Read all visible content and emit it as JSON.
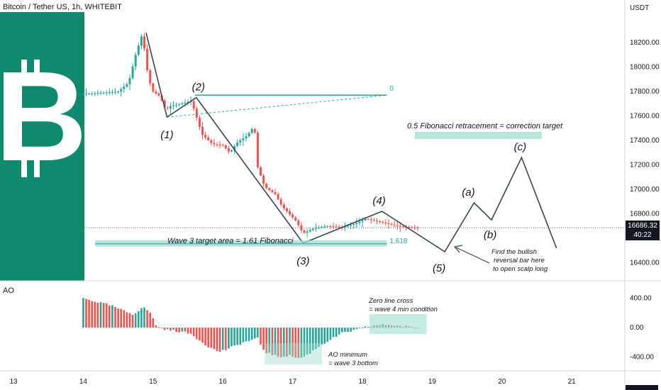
{
  "header": {
    "title": "Bitcoin / Tether US, 1h, WHITEBIT",
    "price_unit": "USDT",
    "oscillator_label": "AO"
  },
  "price_tag": {
    "price": "16686.32",
    "countdown": "40:22"
  },
  "colors": {
    "logo_bg": "#0f8a6f",
    "bull": "#26a69a",
    "bear": "#ef5350",
    "wave_line": "#37474f",
    "fib_zone": "#9fdccf",
    "fib_line": "#26a69a"
  },
  "chart_data": [
    {
      "type": "candlestick",
      "title": "Bitcoin / Tether US, 1h, WHITEBIT",
      "x_ticks": [
        "13",
        "14",
        "15",
        "16",
        "17",
        "18",
        "19",
        "20",
        "21"
      ],
      "y_ticks": [
        18200,
        18000,
        17800,
        17600,
        17400,
        17200,
        17000,
        16800,
        16600,
        16400
      ],
      "ylim": [
        16260,
        18400
      ],
      "x_range": [
        12.8,
        21.4
      ],
      "last_price": 16686.32,
      "close_path": [
        [
          14.0,
          17780
        ],
        [
          14.3,
          17790
        ],
        [
          14.5,
          17800
        ],
        [
          14.65,
          17870
        ],
        [
          14.75,
          18100
        ],
        [
          14.85,
          18280
        ],
        [
          14.9,
          18020
        ],
        [
          14.95,
          17880
        ],
        [
          15.0,
          17800
        ],
        [
          15.1,
          17760
        ],
        [
          15.18,
          17650
        ],
        [
          15.25,
          17680
        ],
        [
          15.4,
          17700
        ],
        [
          15.55,
          17720
        ],
        [
          15.7,
          17450
        ],
        [
          15.85,
          17370
        ],
        [
          16.0,
          17360
        ],
        [
          16.1,
          17300
        ],
        [
          16.2,
          17380
        ],
        [
          16.35,
          17440
        ],
        [
          16.45,
          17520
        ],
        [
          16.5,
          17180
        ],
        [
          16.6,
          17020
        ],
        [
          16.75,
          16960
        ],
        [
          16.85,
          16860
        ],
        [
          16.95,
          16800
        ],
        [
          17.05,
          16740
        ],
        [
          17.15,
          16640
        ],
        [
          17.3,
          16680
        ],
        [
          17.5,
          16700
        ],
        [
          17.7,
          16690
        ],
        [
          17.9,
          16720
        ],
        [
          18.05,
          16760
        ],
        [
          18.2,
          16740
        ],
        [
          18.35,
          16720
        ],
        [
          18.5,
          16700
        ],
        [
          18.65,
          16690
        ],
        [
          18.8,
          16686.32
        ]
      ],
      "elliott_wave": [
        {
          "label": "(1)",
          "x": 15.2,
          "y": 17590
        },
        {
          "label": "(2)",
          "x": 15.62,
          "y": 17750
        },
        {
          "label": "(3)",
          "x": 17.15,
          "y": 16560
        },
        {
          "label": "(4)",
          "x": 18.28,
          "y": 16820
        },
        {
          "label": "(5)",
          "x": 19.18,
          "y": 16490
        },
        {
          "label": "(a)",
          "x": 19.6,
          "y": 16890
        },
        {
          "label": "(b)",
          "x": 19.85,
          "y": 16750
        },
        {
          "label": "(c)",
          "x": 20.28,
          "y": 17260
        },
        {
          "label": "",
          "x": 20.78,
          "y": 16520
        }
      ],
      "fib_levels": [
        {
          "label": "0",
          "value": 17770
        },
        {
          "label": "1.618",
          "value": 16555
        }
      ],
      "annotations": [
        "Wave 3 target area = 1.61 Fibonacci",
        "0.5 Fibonacci retracement = correction target",
        "Find the bullish reversal bar here to open scalp long"
      ]
    },
    {
      "type": "bar",
      "title": "AO",
      "y_ticks": [
        400,
        0,
        -400
      ],
      "ylim": [
        -520,
        520
      ],
      "annotations": [
        "Zero line cross = wave 4 min condition",
        "AO minimum = wave 3 bottom"
      ],
      "ao_path": [
        [
          14.0,
          400
        ],
        [
          14.4,
          300
        ],
        [
          14.6,
          220
        ],
        [
          14.72,
          180
        ],
        [
          14.85,
          280
        ],
        [
          14.95,
          220
        ],
        [
          15.05,
          20
        ],
        [
          15.2,
          -30
        ],
        [
          15.4,
          -55
        ],
        [
          15.55,
          -90
        ],
        [
          15.75,
          -230
        ],
        [
          15.85,
          -290
        ],
        [
          15.95,
          -330
        ],
        [
          16.1,
          -280
        ],
        [
          16.3,
          -200
        ],
        [
          16.5,
          -150
        ],
        [
          16.6,
          -330
        ],
        [
          16.8,
          -400
        ],
        [
          16.95,
          -380
        ],
        [
          17.1,
          -420
        ],
        [
          17.2,
          -380
        ],
        [
          17.4,
          -240
        ],
        [
          17.7,
          -80
        ],
        [
          17.95,
          -20
        ],
        [
          18.1,
          20
        ],
        [
          18.25,
          35
        ],
        [
          18.4,
          40
        ],
        [
          18.55,
          20
        ],
        [
          18.7,
          5
        ],
        [
          18.82,
          0
        ]
      ]
    }
  ]
}
